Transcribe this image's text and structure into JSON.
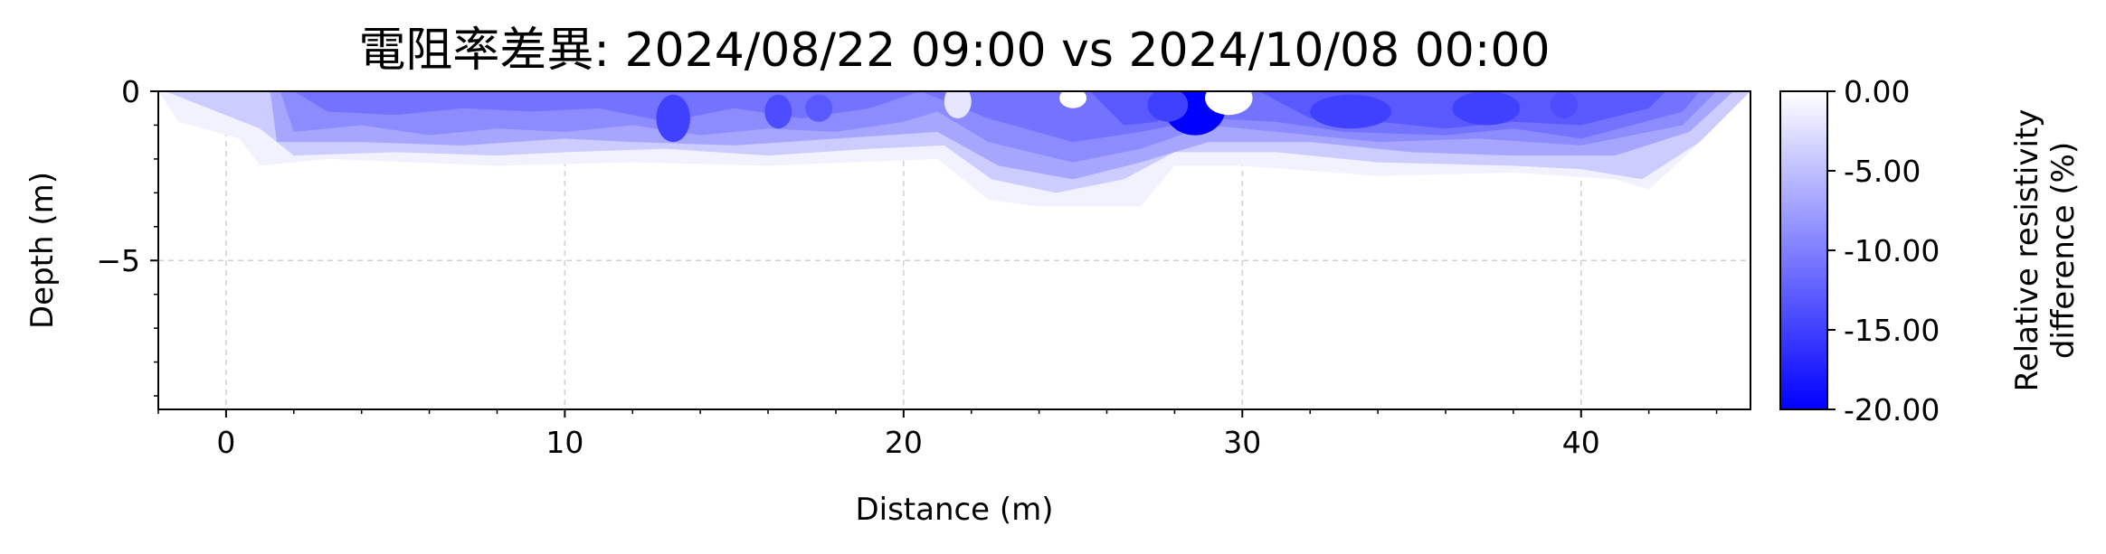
{
  "chart_data": {
    "type": "heatmap",
    "title": "電阻率差異: 2024/08/22 09:00 vs 2024/10/08 00:00",
    "xlabel": "Distance (m)",
    "ylabel": "Depth (m)",
    "xlim": [
      -2,
      45
    ],
    "ylim": [
      -9.4,
      0
    ],
    "xticks": [
      "0",
      "10",
      "20",
      "30",
      "40"
    ],
    "xtick_values": [
      0,
      10,
      20,
      30,
      40
    ],
    "yticks": [
      "0",
      "−5"
    ],
    "ytick_values": [
      0,
      -5
    ],
    "grid": true,
    "colorbar": {
      "label_lines": [
        "Relative resistivity",
        "difference (%)"
      ],
      "range": [
        -20,
        0
      ],
      "ticks": [
        "0.00",
        "-5.00",
        "-10.00",
        "-15.00",
        "-20.00"
      ],
      "tick_values": [
        0,
        -5,
        -10,
        -15,
        -20
      ],
      "color_low": "#0000ff",
      "color_high": "#ffffff"
    },
    "layers": [
      {
        "level": -1,
        "bottom": [
          [
            -2,
            0
          ],
          [
            -1.4,
            -0.9
          ],
          [
            0.4,
            -1.4
          ],
          [
            1,
            -2.2
          ],
          [
            3,
            -2.0
          ],
          [
            8,
            -2.2
          ],
          [
            12,
            -2.1
          ],
          [
            16,
            -2.2
          ],
          [
            21,
            -2.0
          ],
          [
            22.5,
            -3.2
          ],
          [
            24,
            -3.4
          ],
          [
            27,
            -3.4
          ],
          [
            28,
            -2.2
          ],
          [
            30,
            -2.2
          ],
          [
            34,
            -2.5
          ],
          [
            38,
            -2.4
          ],
          [
            41,
            -2.6
          ],
          [
            42,
            -2.9
          ],
          [
            43,
            -2.0
          ],
          [
            45,
            0
          ]
        ]
      },
      {
        "level": -4,
        "bottom": [
          [
            -1.8,
            0
          ],
          [
            1,
            -1.1
          ],
          [
            2,
            -1.9
          ],
          [
            5,
            -1.8
          ],
          [
            8,
            -1.9
          ],
          [
            10,
            -1.8
          ],
          [
            13,
            -1.7
          ],
          [
            16,
            -1.9
          ],
          [
            19,
            -1.7
          ],
          [
            21.2,
            -1.6
          ],
          [
            22.6,
            -2.6
          ],
          [
            24.5,
            -3.0
          ],
          [
            26.5,
            -2.6
          ],
          [
            28,
            -1.8
          ],
          [
            31,
            -1.8
          ],
          [
            34,
            -2.1
          ],
          [
            38,
            -2.2
          ],
          [
            40,
            -2.3
          ],
          [
            41.8,
            -2.6
          ],
          [
            43.5,
            -1.5
          ],
          [
            45,
            0
          ]
        ]
      },
      {
        "level": -7,
        "bottom": [
          [
            1.3,
            0
          ],
          [
            1.5,
            -1.5
          ],
          [
            4,
            -1.5
          ],
          [
            7,
            -1.6
          ],
          [
            10,
            -1.4
          ],
          [
            12,
            -1.5
          ],
          [
            15,
            -1.6
          ],
          [
            18,
            -1.4
          ],
          [
            21,
            -1.2
          ],
          [
            22.8,
            -2.2
          ],
          [
            25,
            -2.6
          ],
          [
            27,
            -2.1
          ],
          [
            29,
            -1.5
          ],
          [
            32,
            -1.5
          ],
          [
            35,
            -1.8
          ],
          [
            38,
            -1.9
          ],
          [
            41,
            -1.9
          ],
          [
            43.2,
            -1.2
          ],
          [
            44.5,
            0
          ]
        ]
      },
      {
        "level": -9,
        "bottom": [
          [
            1.6,
            0
          ],
          [
            2,
            -1.2
          ],
          [
            4,
            -1.0
          ],
          [
            6,
            -1.3
          ],
          [
            8,
            -1.1
          ],
          [
            10,
            -1.2
          ],
          [
            12,
            -1.0
          ],
          [
            14,
            -1.3
          ],
          [
            16,
            -1.1
          ],
          [
            18,
            -1.2
          ],
          [
            20,
            -0.9
          ],
          [
            21,
            -0.6
          ],
          [
            22.5,
            -1.5
          ],
          [
            25,
            -2.1
          ],
          [
            27,
            -1.7
          ],
          [
            29,
            -1.0
          ],
          [
            31,
            -1.2
          ],
          [
            34,
            -1.5
          ],
          [
            37,
            -1.4
          ],
          [
            40,
            -1.6
          ],
          [
            43,
            -1.0
          ],
          [
            44,
            0
          ]
        ]
      },
      {
        "level": -11,
        "bottom": [
          [
            2,
            0
          ],
          [
            3,
            -0.6
          ],
          [
            5,
            -0.7
          ],
          [
            7,
            -0.5
          ],
          [
            9,
            -0.6
          ],
          [
            11,
            -0.5
          ],
          [
            13,
            -0.9
          ],
          [
            15,
            -0.5
          ],
          [
            17,
            -0.8
          ],
          [
            19,
            -0.5
          ],
          [
            20.5,
            0
          ],
          [
            22.5,
            -0.8
          ],
          [
            25,
            -1.5
          ],
          [
            27,
            -1.2
          ],
          [
            29,
            -0.8
          ],
          [
            31,
            -0.9
          ],
          [
            33,
            -1.2
          ],
          [
            36,
            -1.3
          ],
          [
            38,
            -1.1
          ],
          [
            40,
            -1.4
          ],
          [
            43,
            -0.6
          ],
          [
            43.5,
            0
          ]
        ]
      },
      {
        "level": -13,
        "bottom": [
          [
            25.5,
            0
          ],
          [
            26.5,
            -1.0
          ],
          [
            27.5,
            -0.9
          ],
          [
            28.2,
            0
          ]
        ]
      },
      {
        "level": -13,
        "bottom": [
          [
            30.5,
            0
          ],
          [
            32,
            -0.8
          ],
          [
            34,
            -0.9
          ],
          [
            36,
            -1.1
          ],
          [
            38,
            -0.9
          ],
          [
            40,
            -1.0
          ],
          [
            42,
            -0.5
          ],
          [
            42.5,
            0
          ]
        ]
      }
    ],
    "blobs": [
      {
        "x": 28.6,
        "y": -0.5,
        "rx": 0.9,
        "ry": 0.8,
        "level": -20
      },
      {
        "x": 27.8,
        "y": -0.4,
        "rx": 0.6,
        "ry": 0.5,
        "level": -15
      },
      {
        "x": 13.2,
        "y": -0.8,
        "rx": 0.5,
        "ry": 0.7,
        "level": -15
      },
      {
        "x": 16.3,
        "y": -0.6,
        "rx": 0.4,
        "ry": 0.5,
        "level": -14
      },
      {
        "x": 17.5,
        "y": -0.5,
        "rx": 0.4,
        "ry": 0.4,
        "level": -13
      },
      {
        "x": 33.2,
        "y": -0.6,
        "rx": 1.2,
        "ry": 0.5,
        "level": -15
      },
      {
        "x": 37.2,
        "y": -0.5,
        "rx": 1.0,
        "ry": 0.5,
        "level": -15
      },
      {
        "x": 39.5,
        "y": -0.4,
        "rx": 0.4,
        "ry": 0.4,
        "level": -14
      },
      {
        "x": 41.3,
        "y": -0.3,
        "rx": 0.4,
        "ry": 0.3,
        "level": -13
      },
      {
        "x": 29.6,
        "y": -0.2,
        "rx": 0.7,
        "ry": 0.5,
        "level": 0
      },
      {
        "x": 25.0,
        "y": -0.2,
        "rx": 0.4,
        "ry": 0.3,
        "level": 0
      },
      {
        "x": 21.6,
        "y": -0.3,
        "rx": 0.4,
        "ry": 0.5,
        "level": -2
      }
    ]
  }
}
